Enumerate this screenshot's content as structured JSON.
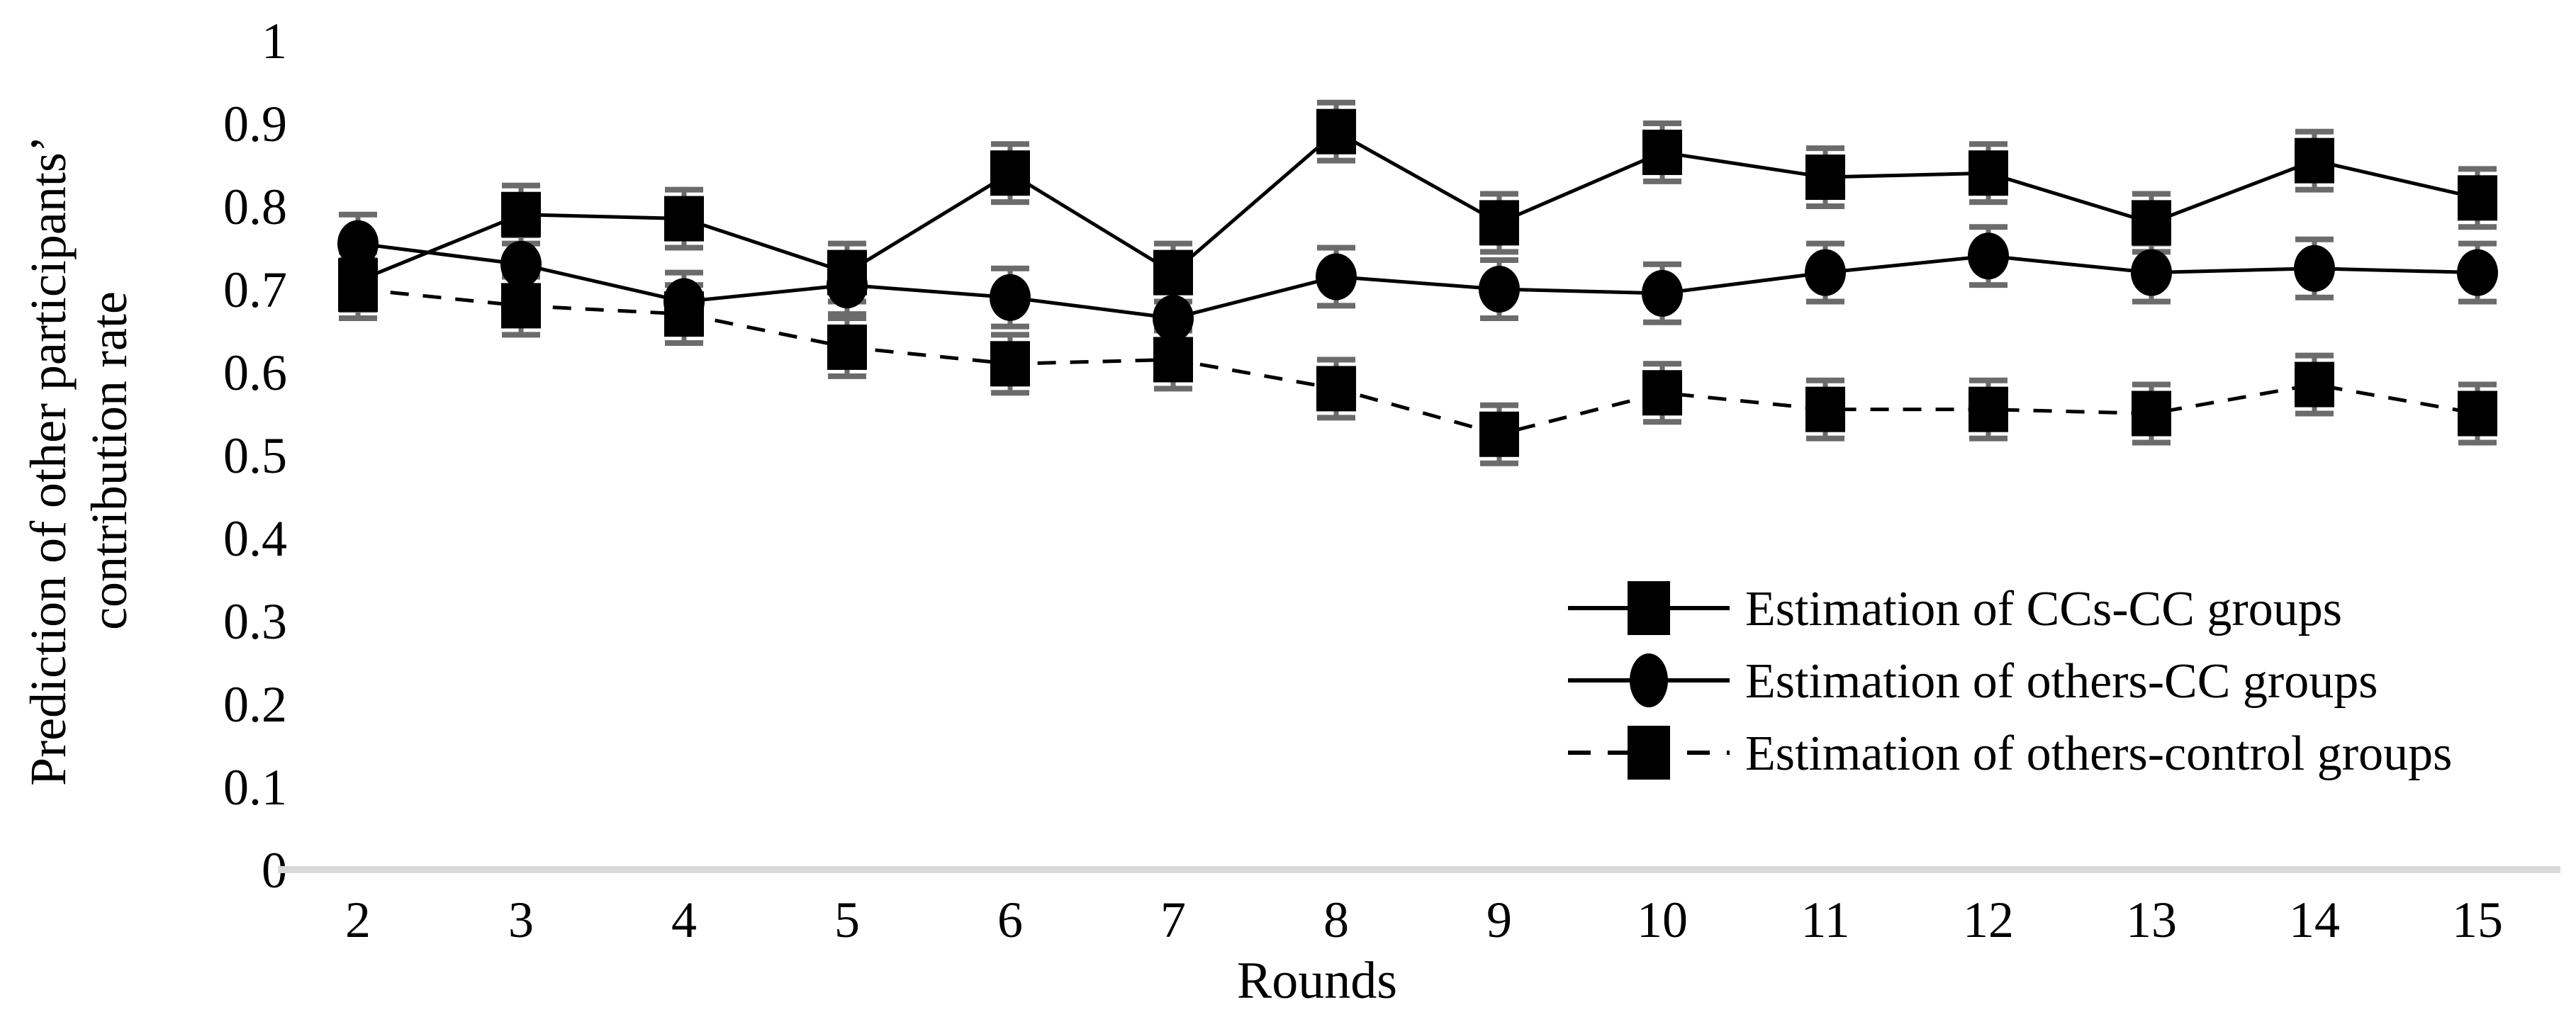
{
  "chart_data": {
    "type": "line",
    "x": [
      2,
      3,
      4,
      5,
      6,
      7,
      8,
      9,
      10,
      11,
      12,
      13,
      14,
      15
    ],
    "xlabel": "Rounds",
    "ylabel_lines": [
      "Prediction of other participants’",
      "contribution rate"
    ],
    "ylim": [
      0,
      1
    ],
    "yticks": [
      0,
      0.1,
      0.2,
      0.3,
      0.4,
      0.5,
      0.6,
      0.7,
      0.8,
      0.9,
      1
    ],
    "ytick_labels": [
      "0",
      "0.1",
      "0.2",
      "0.3",
      "0.4",
      "0.5",
      "0.6",
      "0.7",
      "0.8",
      "0.9",
      "1"
    ],
    "grid": false,
    "legend_position": "center-right",
    "series": [
      {
        "name": "Estimation of CCs-CC groups",
        "marker": "square",
        "linestyle": "solid",
        "color": "#000000",
        "values": [
          0.71,
          0.79,
          0.785,
          0.72,
          0.84,
          0.72,
          0.89,
          0.78,
          0.865,
          0.835,
          0.84,
          0.78,
          0.855,
          0.81
        ],
        "error": 0.035
      },
      {
        "name": "Estimation of others-CC groups",
        "marker": "circle",
        "linestyle": "solid",
        "color": "#000000",
        "values": [
          0.755,
          0.73,
          0.685,
          0.705,
          0.69,
          0.665,
          0.715,
          0.7,
          0.695,
          0.72,
          0.74,
          0.72,
          0.725,
          0.72
        ],
        "error": 0.035
      },
      {
        "name": "Estimation of others-control groups",
        "marker": "square",
        "linestyle": "dashed",
        "color": "#000000",
        "values": [
          0.7,
          0.68,
          0.67,
          0.63,
          0.61,
          0.615,
          0.58,
          0.525,
          0.575,
          0.555,
          0.555,
          0.55,
          0.585,
          0.55
        ],
        "error": 0.035
      }
    ],
    "error_bar_color": "#6b6b6b",
    "axis_line_color": "#d9d9d9"
  }
}
